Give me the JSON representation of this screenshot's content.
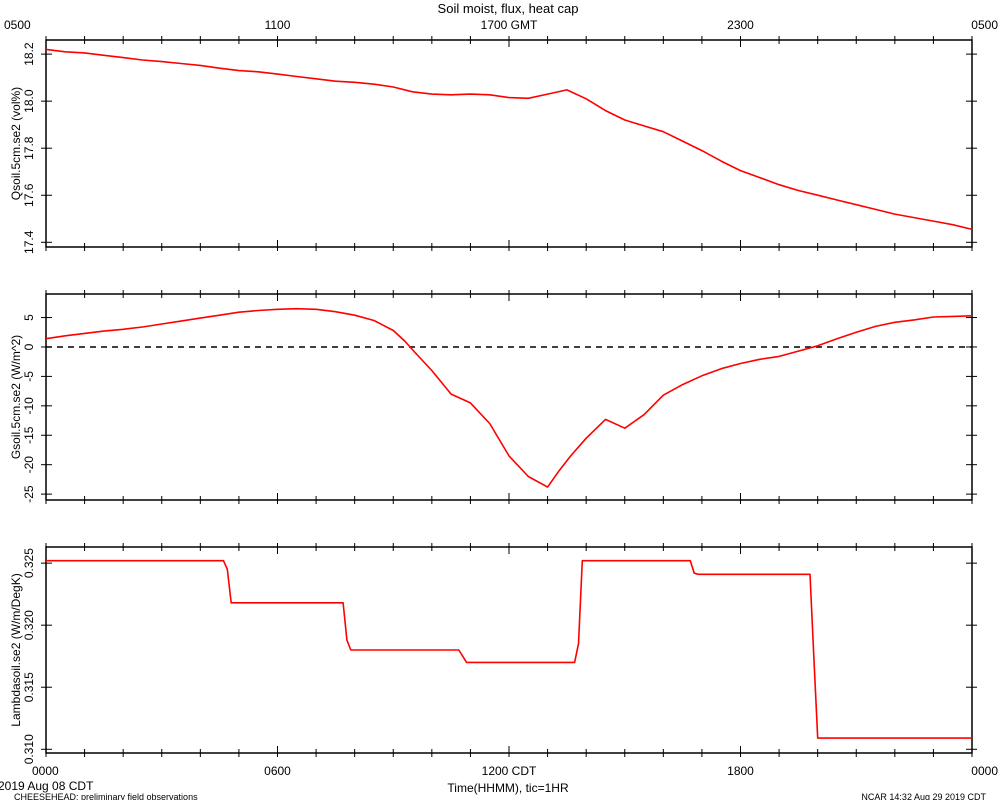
{
  "title": "Soil moist, flux, heat cap",
  "top_axis": {
    "ticks": [
      {
        "t": 0,
        "label": "0500"
      },
      {
        "t": 6,
        "label": "1100"
      },
      {
        "t": 12,
        "label": "1700 GMT"
      },
      {
        "t": 18,
        "label": "2300"
      },
      {
        "t": 24,
        "label": "0500"
      }
    ]
  },
  "bottom_axis": {
    "ticks": [
      {
        "t": 0,
        "label": "0000"
      },
      {
        "t": 6,
        "label": "0600"
      },
      {
        "t": 12,
        "label": "1200 CDT"
      },
      {
        "t": 18,
        "label": "1800"
      },
      {
        "t": 24,
        "label": "0000"
      }
    ],
    "xlabel": "Time(HHMM), tic=1HR",
    "date_label": "2019 Aug 08 CDT"
  },
  "footer": {
    "left": "CHEESEHEAD: preliminary field observations",
    "right": "NCAR 14:32 Aug 29 2019 CDT"
  },
  "colors": {
    "series": "#ff0000",
    "axis": "#000000",
    "reference": "#000000"
  },
  "chart_data": [
    {
      "type": "line",
      "ylabel": "Qsoil.5cm.se2 (vol%)",
      "xlim": [
        0,
        24
      ],
      "ylim": [
        17.38,
        18.26
      ],
      "yticks": [
        17.4,
        17.6,
        17.8,
        18.0,
        18.2
      ],
      "ytick_labels": [
        "17.4",
        "17.6",
        "17.8",
        "18.0",
        "18.2"
      ],
      "series": [
        {
          "x": [
            0,
            0.5,
            1,
            1.5,
            2,
            2.5,
            3,
            3.5,
            4,
            4.5,
            5,
            5.5,
            6,
            6.5,
            7,
            7.5,
            8,
            8.5,
            9,
            9.5,
            10,
            10.5,
            11,
            11.5,
            12,
            12.5,
            13,
            13.5,
            14,
            14.5,
            15,
            15.5,
            16,
            16.5,
            17,
            17.5,
            18,
            18.5,
            19,
            19.5,
            20,
            20.5,
            21,
            21.5,
            22,
            22.5,
            23,
            23.5,
            24
          ],
          "y": [
            18.22,
            18.21,
            18.205,
            18.195,
            18.185,
            18.175,
            18.168,
            18.16,
            18.152,
            18.14,
            18.13,
            18.125,
            18.115,
            18.105,
            18.095,
            18.085,
            18.08,
            18.072,
            18.06,
            18.04,
            18.03,
            18.027,
            18.03,
            18.027,
            18.015,
            18.012,
            18.03,
            18.048,
            18.01,
            17.96,
            17.92,
            17.895,
            17.87,
            17.83,
            17.79,
            17.745,
            17.705,
            17.675,
            17.645,
            17.62,
            17.6,
            17.58,
            17.56,
            17.54,
            17.52,
            17.505,
            17.49,
            17.475,
            17.455
          ]
        }
      ]
    },
    {
      "type": "line",
      "ylabel": "Gsoil.5cm.se2 (W/m^2)",
      "xlim": [
        0,
        24
      ],
      "ylim": [
        -26,
        9
      ],
      "yticks": [
        -25,
        -20,
        -15,
        -10,
        -5,
        0,
        5
      ],
      "ytick_labels": [
        "-25",
        "-20",
        "-15",
        "-10",
        "-5",
        "0",
        "5"
      ],
      "reference_line": 0,
      "series": [
        {
          "x": [
            0,
            0.5,
            1,
            1.5,
            2,
            2.5,
            3,
            3.5,
            4,
            4.5,
            5,
            5.5,
            6,
            6.5,
            7,
            7.5,
            8,
            8.5,
            9,
            9.3,
            9.6,
            10,
            10.5,
            11,
            11.5,
            12,
            12.5,
            13,
            13.3,
            13.6,
            14,
            14.5,
            15,
            15.5,
            16,
            16.5,
            17,
            17.5,
            18,
            18.5,
            19,
            19.5,
            20,
            20.5,
            21,
            21.5,
            22,
            22.5,
            23,
            23.5,
            24
          ],
          "y": [
            1.4,
            1.9,
            2.3,
            2.7,
            3.0,
            3.4,
            3.9,
            4.4,
            4.9,
            5.4,
            5.9,
            6.2,
            6.4,
            6.5,
            6.4,
            6.0,
            5.4,
            4.5,
            2.8,
            1.0,
            -1.2,
            -4.0,
            -8.0,
            -9.5,
            -13.0,
            -18.5,
            -22.0,
            -23.8,
            -21.0,
            -18.5,
            -15.5,
            -12.3,
            -13.8,
            -11.5,
            -8.2,
            -6.4,
            -4.9,
            -3.7,
            -2.8,
            -2.1,
            -1.6,
            -0.7,
            0.2,
            1.4,
            2.5,
            3.5,
            4.2,
            4.6,
            5.1,
            5.2,
            5.3
          ]
        }
      ]
    },
    {
      "type": "line",
      "ylabel": "Lambdasoil.se2 (W/m/DegK)",
      "xlim": [
        0,
        24
      ],
      "ylim": [
        0.3097,
        0.3263
      ],
      "yticks": [
        0.31,
        0.315,
        0.32,
        0.325
      ],
      "ytick_labels": [
        "0.310",
        "0.315",
        "0.320",
        "0.325"
      ],
      "series": [
        {
          "x": [
            0,
            4.6,
            4.7,
            4.8,
            7.7,
            7.8,
            7.9,
            10.7,
            10.9,
            13.7,
            13.8,
            13.9,
            16.7,
            16.8,
            16.9,
            19.8,
            19.9,
            20.0,
            24
          ],
          "y": [
            0.3252,
            0.3252,
            0.3245,
            0.3218,
            0.3218,
            0.3188,
            0.318,
            0.318,
            0.317,
            0.317,
            0.3185,
            0.3252,
            0.3252,
            0.3242,
            0.3241,
            0.3241,
            0.3175,
            0.3109,
            0.3109
          ]
        }
      ]
    }
  ]
}
